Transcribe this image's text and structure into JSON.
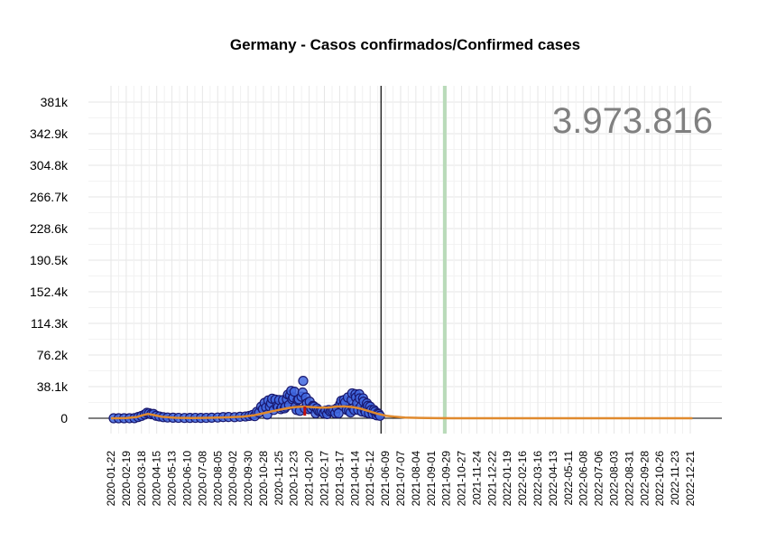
{
  "chart_data": {
    "type": "scatter",
    "title": "Germany - Casos confirmados/Confirmed cases",
    "xlabel": "",
    "ylabel": "",
    "total_annotation": "3.973.816",
    "x_range": [
      "2020-01-22",
      "2022-12-31"
    ],
    "ylim": [
      0,
      381000
    ],
    "y_ticks": [
      {
        "value": 0,
        "label": "0"
      },
      {
        "value": 38100,
        "label": "38.1k"
      },
      {
        "value": 76200,
        "label": "76.2k"
      },
      {
        "value": 114300,
        "label": "114.3k"
      },
      {
        "value": 152400,
        "label": "152.4k"
      },
      {
        "value": 190500,
        "label": "190.5k"
      },
      {
        "value": 228600,
        "label": "228.6k"
      },
      {
        "value": 266700,
        "label": "266.7k"
      },
      {
        "value": 304800,
        "label": "304.8k"
      },
      {
        "value": 342900,
        "label": "342.9k"
      },
      {
        "value": 381000,
        "label": "381k"
      }
    ],
    "x_tick_labels": [
      "2020-01-22",
      "2020-02-19",
      "2020-03-18",
      "2020-04-15",
      "2020-05-13",
      "2020-06-10",
      "2020-07-08",
      "2020-08-05",
      "2020-09-02",
      "2020-09-30",
      "2020-10-28",
      "2020-11-25",
      "2020-12-23",
      "2021-01-20",
      "2021-02-17",
      "2021-03-17",
      "2021-04-14",
      "2021-05-12",
      "2021-06-09",
      "2021-07-07",
      "2021-08-04",
      "2021-09-01",
      "2021-09-29",
      "2021-10-27",
      "2021-11-24",
      "2021-12-22",
      "2022-01-19",
      "2022-02-16",
      "2022-03-16",
      "2022-04-13",
      "2022-05-11",
      "2022-06-08",
      "2022-07-06",
      "2022-08-03",
      "2022-08-31",
      "2022-09-28",
      "2022-10-26",
      "2022-11-23",
      "2022-12-21"
    ],
    "grid": true,
    "reference_lines": [
      {
        "date": "2021-06-01",
        "color": "#000000"
      },
      {
        "date": "2021-09-26",
        "color": "#b9dbb9"
      }
    ],
    "series": [
      {
        "type": "scatter",
        "color": "#4169e1",
        "edge_color": "#191970",
        "points": [
          [
            "2020-01-27",
            0
          ],
          [
            "2020-02-05",
            0
          ],
          [
            "2020-02-15",
            10
          ],
          [
            "2020-02-25",
            30
          ],
          [
            "2020-03-05",
            150
          ],
          [
            "2020-03-12",
            1500
          ],
          [
            "2020-03-18",
            2800
          ],
          [
            "2020-03-24",
            4500
          ],
          [
            "2020-03-28",
            6500
          ],
          [
            "2020-04-01",
            6000
          ],
          [
            "2020-04-05",
            4800
          ],
          [
            "2020-04-09",
            5200
          ],
          [
            "2020-04-14",
            3000
          ],
          [
            "2020-04-20",
            2100
          ],
          [
            "2020-04-27",
            1300
          ],
          [
            "2020-05-05",
            900
          ],
          [
            "2020-05-15",
            700
          ],
          [
            "2020-05-25",
            500
          ],
          [
            "2020-06-05",
            350
          ],
          [
            "2020-06-15",
            400
          ],
          [
            "2020-06-25",
            500
          ],
          [
            "2020-07-05",
            400
          ],
          [
            "2020-07-15",
            450
          ],
          [
            "2020-07-25",
            700
          ],
          [
            "2020-08-05",
            900
          ],
          [
            "2020-08-15",
            1400
          ],
          [
            "2020-08-25",
            1500
          ],
          [
            "2020-09-05",
            1300
          ],
          [
            "2020-09-15",
            1800
          ],
          [
            "2020-09-25",
            2100
          ],
          [
            "2020-10-02",
            2800
          ],
          [
            "2020-10-08",
            4000
          ],
          [
            "2020-10-12",
            2500
          ],
          [
            "2020-10-16",
            7800
          ],
          [
            "2020-10-20",
            6800
          ],
          [
            "2020-10-24",
            14000
          ],
          [
            "2020-10-27",
            11000
          ],
          [
            "2020-10-30",
            18500
          ],
          [
            "2020-11-02",
            13000
          ],
          [
            "2020-11-04",
            4500
          ],
          [
            "2020-11-06",
            21500
          ],
          [
            "2020-11-09",
            14000
          ],
          [
            "2020-11-11",
            18000
          ],
          [
            "2020-11-13",
            23500
          ],
          [
            "2020-11-16",
            10000
          ],
          [
            "2020-11-19",
            22500
          ],
          [
            "2020-11-22",
            15000
          ],
          [
            "2020-11-24",
            13500
          ],
          [
            "2020-11-26",
            22000
          ],
          [
            "2020-11-29",
            11000
          ],
          [
            "2020-12-01",
            13000
          ],
          [
            "2020-12-03",
            22000
          ],
          [
            "2020-12-06",
            12000
          ],
          [
            "2020-12-08",
            14000
          ],
          [
            "2020-12-10",
            23000
          ],
          [
            "2020-12-12",
            28500
          ],
          [
            "2020-12-14",
            16000
          ],
          [
            "2020-12-16",
            27500
          ],
          [
            "2020-12-18",
            33000
          ],
          [
            "2020-12-20",
            23000
          ],
          [
            "2020-12-22",
            25000
          ],
          [
            "2020-12-24",
            32000
          ],
          [
            "2020-12-26",
            14000
          ],
          [
            "2020-12-28",
            10000
          ],
          [
            "2020-12-30",
            22000
          ],
          [
            "2021-01-01",
            22900
          ],
          [
            "2021-01-03",
            9000
          ],
          [
            "2021-01-06",
            26000
          ],
          [
            "2021-01-08",
            31000
          ],
          [
            "2021-01-09",
            45000
          ],
          [
            "2021-01-12",
            12000
          ],
          [
            "2021-01-14",
            25000
          ],
          [
            "2021-01-16",
            18000
          ],
          [
            "2021-01-19",
            11000
          ],
          [
            "2021-01-21",
            20000
          ],
          [
            "2021-01-24",
            12000
          ],
          [
            "2021-01-27",
            15000
          ],
          [
            "2021-01-29",
            14000
          ],
          [
            "2021-02-01",
            6000
          ],
          [
            "2021-02-03",
            12000
          ],
          [
            "2021-02-06",
            9000
          ],
          [
            "2021-02-09",
            8000
          ],
          [
            "2021-02-12",
            8300
          ],
          [
            "2021-02-16",
            6000
          ],
          [
            "2021-02-19",
            9000
          ],
          [
            "2021-02-22",
            5000
          ],
          [
            "2021-02-25",
            10000
          ],
          [
            "2021-02-28",
            8000
          ],
          [
            "2021-03-03",
            9000
          ],
          [
            "2021-03-06",
            10000
          ],
          [
            "2021-03-09",
            6000
          ],
          [
            "2021-03-12",
            12000
          ],
          [
            "2021-03-15",
            6000
          ],
          [
            "2021-03-18",
            17000
          ],
          [
            "2021-03-20",
            21000
          ],
          [
            "2021-03-23",
            15000
          ],
          [
            "2021-03-25",
            22000
          ],
          [
            "2021-03-27",
            19000
          ],
          [
            "2021-03-30",
            10000
          ],
          [
            "2021-04-01",
            25000
          ],
          [
            "2021-04-03",
            9000
          ],
          [
            "2021-04-06",
            7000
          ],
          [
            "2021-04-08",
            22000
          ],
          [
            "2021-04-09",
            30000
          ],
          [
            "2021-04-11",
            12000
          ],
          [
            "2021-04-13",
            10000
          ],
          [
            "2021-04-15",
            29000
          ],
          [
            "2021-04-16",
            25000
          ],
          [
            "2021-04-18",
            18000
          ],
          [
            "2021-04-20",
            10000
          ],
          [
            "2021-04-22",
            29000
          ],
          [
            "2021-04-23",
            24000
          ],
          [
            "2021-04-25",
            14000
          ],
          [
            "2021-04-27",
            8000
          ],
          [
            "2021-04-29",
            24000
          ],
          [
            "2021-04-30",
            20000
          ],
          [
            "2021-05-02",
            10000
          ],
          [
            "2021-05-04",
            7000
          ],
          [
            "2021-05-06",
            18000
          ],
          [
            "2021-05-08",
            15000
          ],
          [
            "2021-05-10",
            6000
          ],
          [
            "2021-05-12",
            14000
          ],
          [
            "2021-05-14",
            10000
          ],
          [
            "2021-05-17",
            5000
          ],
          [
            "2021-05-19",
            10000
          ],
          [
            "2021-05-21",
            8000
          ],
          [
            "2021-05-24",
            3500
          ],
          [
            "2021-05-26",
            6000
          ],
          [
            "2021-05-28",
            5000
          ],
          [
            "2021-05-30",
            3000
          ]
        ]
      },
      {
        "type": "line",
        "color": "#e08a2e",
        "points": [
          [
            "2020-01-22",
            0
          ],
          [
            "2020-02-20",
            200
          ],
          [
            "2020-03-10",
            1500
          ],
          [
            "2020-03-20",
            3600
          ],
          [
            "2020-03-30",
            5200
          ],
          [
            "2020-04-10",
            3800
          ],
          [
            "2020-04-25",
            1700
          ],
          [
            "2020-05-20",
            500
          ],
          [
            "2020-06-20",
            300
          ],
          [
            "2020-07-20",
            500
          ],
          [
            "2020-08-20",
            1100
          ],
          [
            "2020-09-20",
            1800
          ],
          [
            "2020-10-10",
            3500
          ],
          [
            "2020-10-25",
            5500
          ],
          [
            "2020-11-10",
            8000
          ],
          [
            "2020-11-25",
            10000
          ],
          [
            "2020-12-10",
            12000
          ],
          [
            "2020-12-25",
            13500
          ],
          [
            "2021-01-10",
            14000
          ],
          [
            "2021-01-25",
            13500
          ],
          [
            "2021-02-10",
            12800
          ],
          [
            "2021-02-25",
            13000
          ],
          [
            "2021-03-10",
            14000
          ],
          [
            "2021-03-25",
            14300
          ],
          [
            "2021-04-10",
            13500
          ],
          [
            "2021-04-25",
            11500
          ],
          [
            "2021-05-10",
            8500
          ],
          [
            "2021-05-25",
            5500
          ],
          [
            "2021-06-10",
            3000
          ],
          [
            "2021-06-25",
            1800
          ],
          [
            "2021-07-15",
            900
          ],
          [
            "2021-08-10",
            400
          ],
          [
            "2021-09-10",
            150
          ],
          [
            "2021-10-10",
            50
          ],
          [
            "2021-12-01",
            10
          ],
          [
            "2022-06-01",
            0
          ],
          [
            "2022-12-25",
            0
          ]
        ]
      },
      {
        "type": "line",
        "color": "#c01010",
        "points": [
          [
            "2021-01-12",
            3000
          ],
          [
            "2021-01-12",
            14000
          ]
        ]
      }
    ]
  }
}
